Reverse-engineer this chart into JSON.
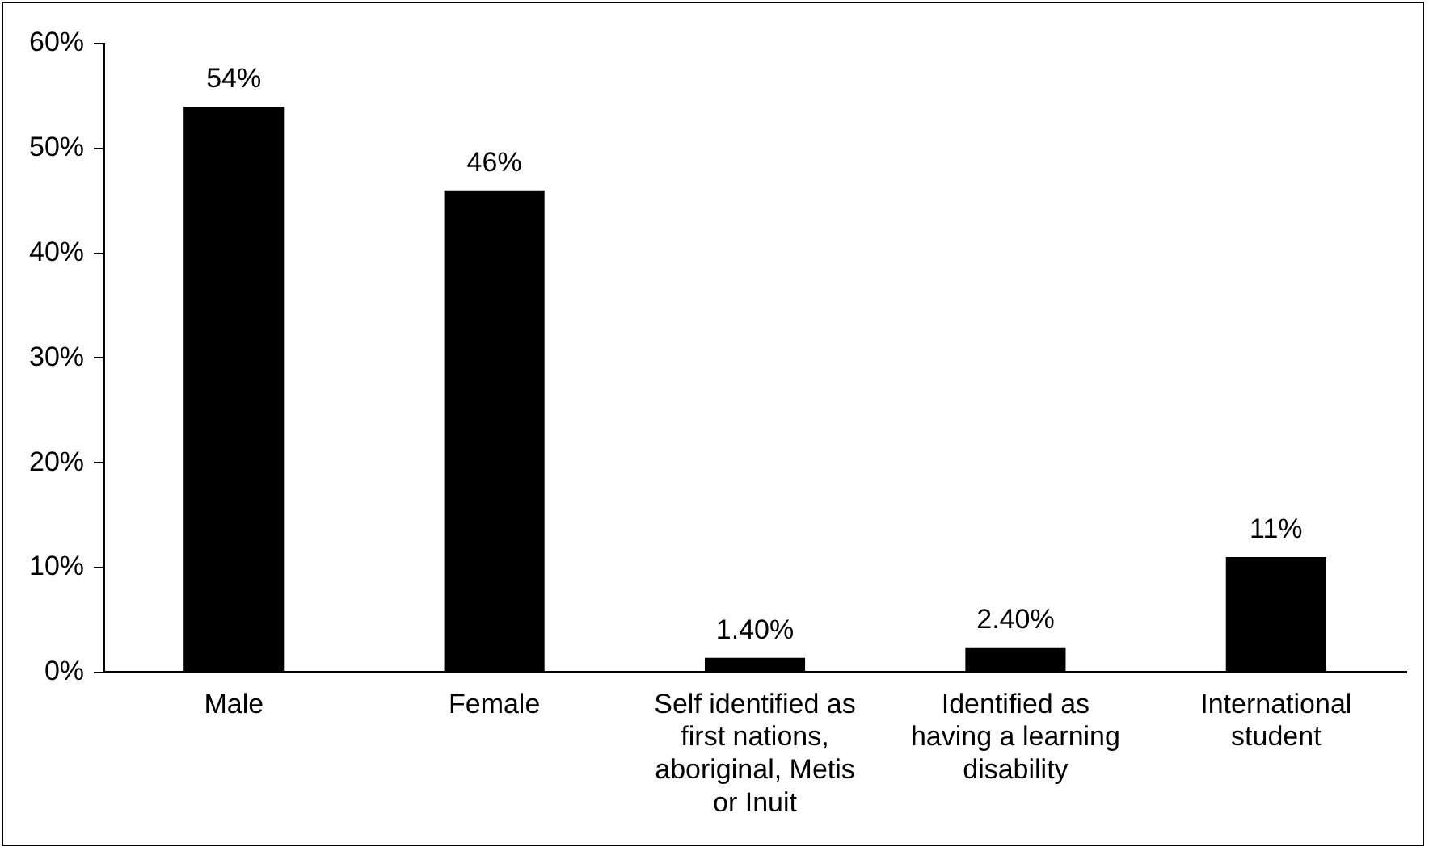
{
  "chart_data": {
    "type": "bar",
    "categories": [
      "Male",
      "Female",
      "Self identified as first nations, aboriginal, Metis or Inuit",
      "Identified as having a learning disability",
      "International student"
    ],
    "values": [
      54,
      46,
      1.4,
      2.4,
      11
    ],
    "value_labels": [
      "54%",
      "46%",
      "1.40%",
      "2.40%",
      "11%"
    ],
    "color": "#000000",
    "ylim": [
      0,
      60
    ],
    "yticks": [
      {
        "value": 0,
        "label": "0%"
      },
      {
        "value": 10,
        "label": "10%"
      },
      {
        "value": 20,
        "label": "20%"
      },
      {
        "value": 30,
        "label": "30%"
      },
      {
        "value": 40,
        "label": "40%"
      },
      {
        "value": 50,
        "label": "50%"
      },
      {
        "value": 60,
        "label": "60%"
      }
    ],
    "grid": false,
    "legend": false
  }
}
